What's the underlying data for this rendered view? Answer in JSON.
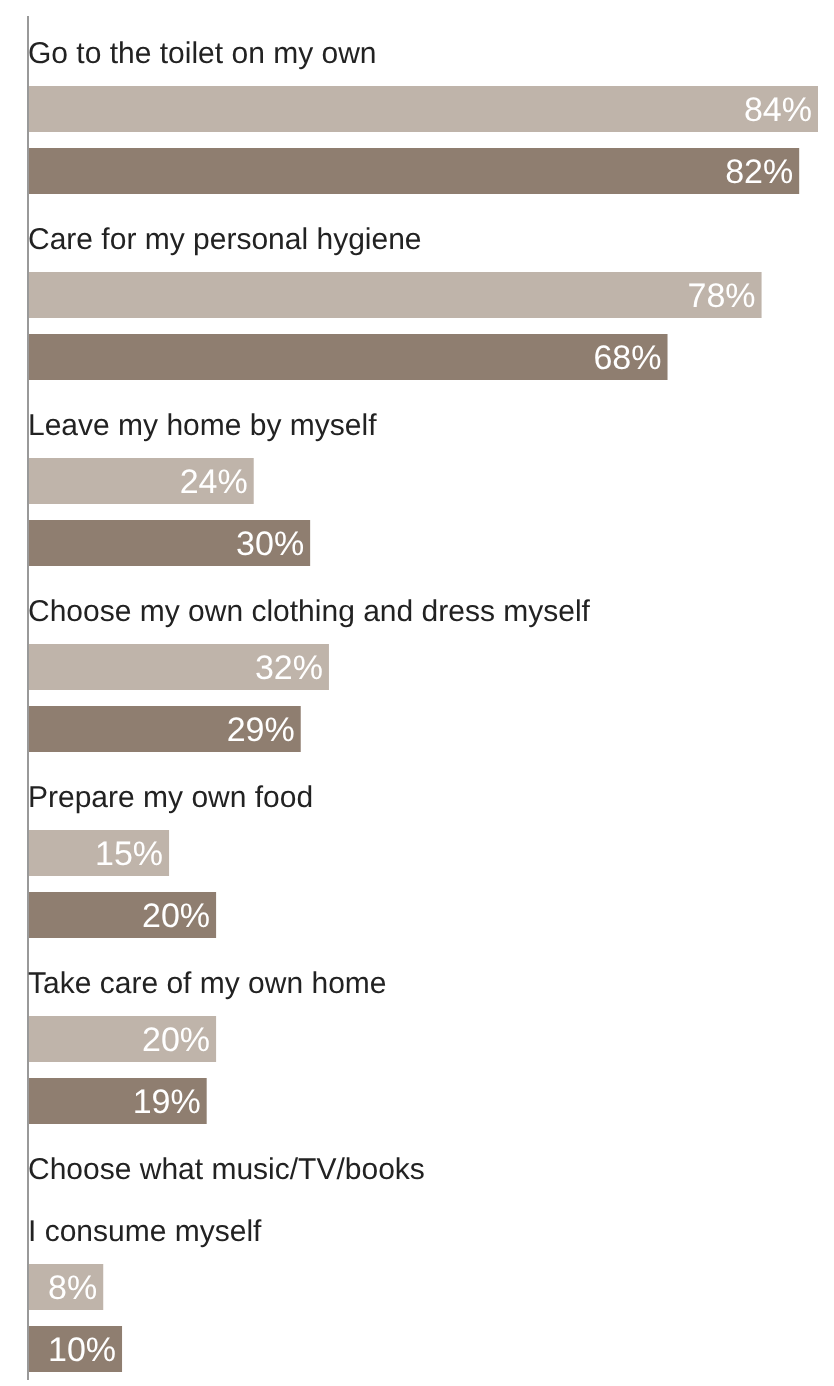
{
  "chart_data": {
    "type": "bar",
    "orientation": "horizontal",
    "categories": [
      "Go to the toilet on my own",
      "Care for my personal hygiene",
      "Leave my home by myself",
      "Choose my own clothing and dress myself",
      "Prepare my own food",
      "Take care of my own home",
      "Choose what music/TV/books\nI consume myself"
    ],
    "series": [
      {
        "color": "#bfb4aa",
        "values": [
          84,
          78,
          24,
          32,
          15,
          20,
          8
        ],
        "value_labels": [
          "84%",
          "78%",
          "24%",
          "32%",
          "15%",
          "20%",
          "8%"
        ]
      },
      {
        "color": "#8f7e70",
        "values": [
          82,
          68,
          30,
          29,
          20,
          19,
          10
        ],
        "value_labels": [
          "82%",
          "68%",
          "30%",
          "29%",
          "20%",
          "19%",
          "10%"
        ]
      }
    ]
  }
}
